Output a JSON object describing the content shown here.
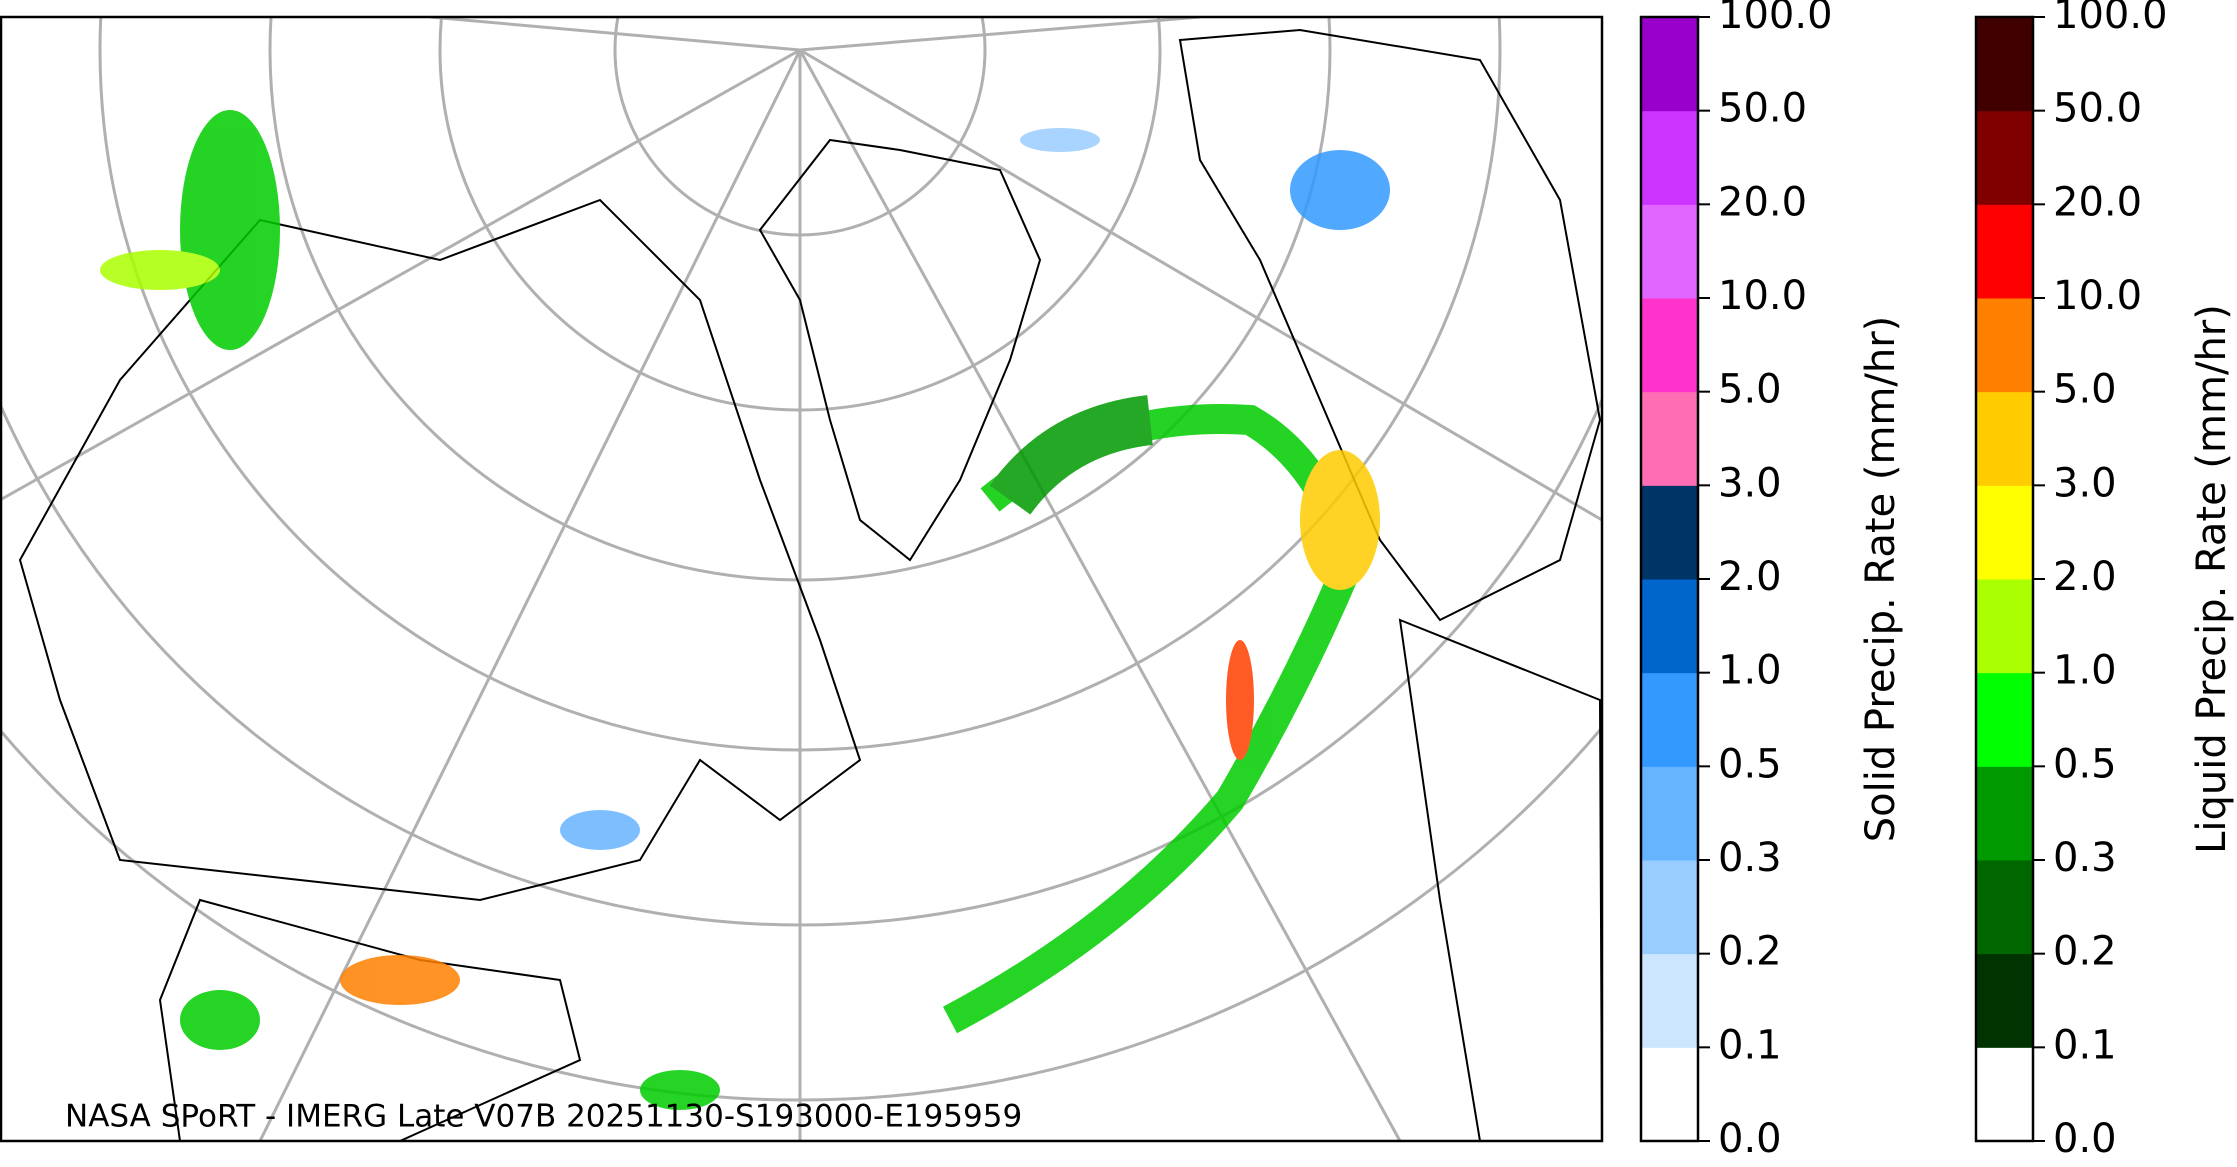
{
  "map": {
    "caption": "NASA SPoRT - IMERG Late V07B 20251130-S193000-E195959"
  },
  "colorbars": [
    {
      "label": "Solid Precip. Rate (mm/hr)",
      "ticks": [
        "0.0",
        "0.1",
        "0.2",
        "0.3",
        "0.5",
        "1.0",
        "2.0",
        "3.0",
        "5.0",
        "10.0",
        "20.0",
        "50.0",
        "100.0"
      ],
      "colors": [
        "#ffffff",
        "#cce6ff",
        "#99ccff",
        "#66b3ff",
        "#3399ff",
        "#0066cc",
        "#003366",
        "#ff6eb4",
        "#ff33cc",
        "#e066ff",
        "#cc33ff",
        "#9900cc"
      ]
    },
    {
      "label": "Liquid Precip. Rate (mm/hr)",
      "ticks": [
        "0.0",
        "0.1",
        "0.2",
        "0.3",
        "0.5",
        "1.0",
        "2.0",
        "3.0",
        "5.0",
        "10.0",
        "20.0",
        "50.0",
        "100.0"
      ],
      "colors": [
        "#ffffff",
        "#003300",
        "#006600",
        "#009900",
        "#00ff00",
        "#aaff00",
        "#ffff00",
        "#ffcc00",
        "#ff8000",
        "#ff0000",
        "#800000",
        "#400000"
      ]
    }
  ]
}
